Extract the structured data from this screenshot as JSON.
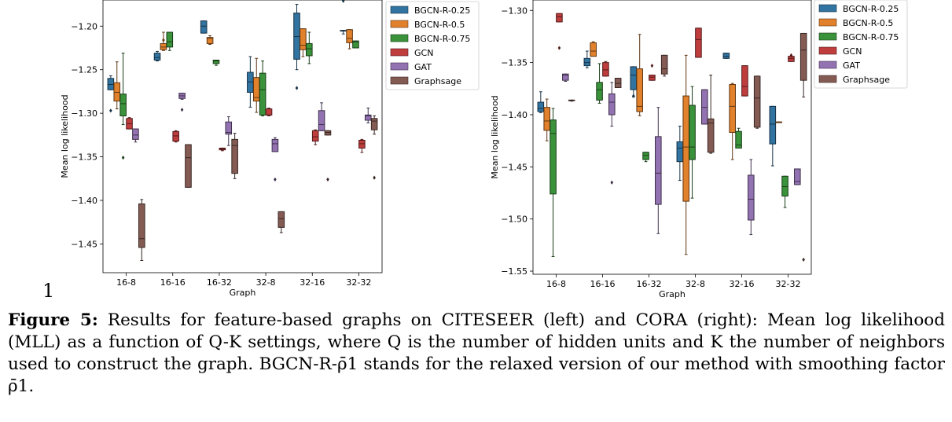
{
  "chart_data": [
    {
      "type": "box",
      "name": "CITESEER",
      "xlabel": "Graph",
      "ylabel": "Mean log likelihood",
      "categories": [
        "16-8",
        "16-16",
        "16-32",
        "32-8",
        "32-16",
        "32-32"
      ],
      "ylim": [
        -1.483,
        -1.17
      ],
      "yticks": [
        -1.2,
        -1.25,
        -1.3,
        -1.35,
        -1.4,
        -1.45
      ],
      "ytick_labels": [
        "−1.20",
        "−1.25",
        "−1.30",
        "−1.35",
        "−1.40",
        "−1.45"
      ],
      "grid": false,
      "legend_position": "outside-right",
      "series": [
        {
          "name": "BGCN-R-0.25",
          "color": "#3274a1",
          "boxes": [
            {
              "wlo": -1.273,
              "q1": -1.273,
              "med": -1.267,
              "q3": -1.26,
              "whi": -1.257,
              "fliers": [
                -1.297
              ]
            },
            {
              "wlo": -1.24,
              "q1": -1.239,
              "med": -1.236,
              "q3": -1.231,
              "whi": -1.229,
              "fliers": []
            },
            {
              "wlo": -1.208,
              "q1": -1.208,
              "med": -1.2,
              "q3": -1.194,
              "whi": -1.194,
              "fliers": [
                -1.163
              ]
            },
            {
              "wlo": -1.293,
              "q1": -1.276,
              "med": -1.264,
              "q3": -1.253,
              "whi": -1.235,
              "fliers": []
            },
            {
              "wlo": -1.25,
              "q1": -1.238,
              "med": -1.212,
              "q3": -1.185,
              "whi": -1.175,
              "fliers": [
                -1.271
              ]
            },
            {
              "wlo": -1.209,
              "q1": -1.205,
              "med": -1.205,
              "q3": -1.205,
              "whi": -1.205,
              "fliers": [
                -1.171
              ]
            }
          ]
        },
        {
          "name": "BGCN-R-0.5",
          "color": "#e1812c",
          "boxes": [
            {
              "wlo": -1.295,
              "q1": -1.286,
              "med": -1.276,
              "q3": -1.265,
              "whi": -1.241,
              "fliers": []
            },
            {
              "wlo": -1.228,
              "q1": -1.227,
              "med": -1.224,
              "q3": -1.22,
              "whi": -1.207,
              "fliers": [
                -1.216
              ]
            },
            {
              "wlo": -1.221,
              "q1": -1.22,
              "med": -1.214,
              "q3": -1.213,
              "whi": -1.211,
              "fliers": []
            },
            {
              "wlo": -1.299,
              "q1": -1.286,
              "med": -1.282,
              "q3": -1.259,
              "whi": -1.237,
              "fliers": []
            },
            {
              "wlo": -1.235,
              "q1": -1.227,
              "med": -1.222,
              "q3": -1.203,
              "whi": -1.203,
              "fliers": []
            },
            {
              "wlo": -1.226,
              "q1": -1.219,
              "med": -1.214,
              "q3": -1.204,
              "whi": -1.204,
              "fliers": []
            }
          ]
        },
        {
          "name": "BGCN-R-0.75",
          "color": "#3a923a",
          "boxes": [
            {
              "wlo": -1.313,
              "q1": -1.303,
              "med": -1.289,
              "q3": -1.278,
              "whi": -1.231,
              "fliers": [
                -1.351
              ]
            },
            {
              "wlo": -1.228,
              "q1": -1.224,
              "med": -1.218,
              "q3": -1.207,
              "whi": -1.207,
              "fliers": []
            },
            {
              "wlo": -1.245,
              "q1": -1.243,
              "med": -1.24,
              "q3": -1.239,
              "whi": -1.239,
              "fliers": []
            },
            {
              "wlo": -1.303,
              "q1": -1.302,
              "med": -1.273,
              "q3": -1.254,
              "whi": -1.24,
              "fliers": []
            },
            {
              "wlo": -1.243,
              "q1": -1.234,
              "med": -1.226,
              "q3": -1.22,
              "whi": -1.207,
              "fliers": []
            },
            {
              "wlo": -1.225,
              "q1": -1.225,
              "med": -1.218,
              "q3": -1.217,
              "whi": -1.217,
              "fliers": []
            }
          ]
        },
        {
          "name": "GCN",
          "color": "#c03d3e",
          "boxes": [
            {
              "wlo": -1.318,
              "q1": -1.318,
              "med": -1.312,
              "q3": -1.306,
              "whi": -1.305,
              "fliers": []
            },
            {
              "wlo": -1.333,
              "q1": -1.332,
              "med": -1.326,
              "q3": -1.321,
              "whi": -1.32,
              "fliers": []
            },
            {
              "wlo": -1.343,
              "q1": -1.342,
              "med": -1.341,
              "q3": -1.34,
              "whi": -1.34,
              "fliers": []
            },
            {
              "wlo": -1.303,
              "q1": -1.302,
              "med": -1.302,
              "q3": -1.295,
              "whi": -1.294,
              "fliers": []
            },
            {
              "wlo": -1.336,
              "q1": -1.332,
              "med": -1.327,
              "q3": -1.32,
              "whi": -1.319,
              "fliers": []
            },
            {
              "wlo": -1.345,
              "q1": -1.34,
              "med": -1.335,
              "q3": -1.331,
              "whi": -1.33,
              "fliers": []
            }
          ]
        },
        {
          "name": "GAT",
          "color": "#9372b2",
          "boxes": [
            {
              "wlo": -1.333,
              "q1": -1.33,
              "med": -1.325,
              "q3": -1.318,
              "whi": -1.318,
              "fliers": []
            },
            {
              "wlo": -1.284,
              "q1": -1.283,
              "med": -1.28,
              "q3": -1.277,
              "whi": -1.277,
              "fliers": [
                -1.296
              ]
            },
            {
              "wlo": -1.337,
              "q1": -1.324,
              "med": -1.322,
              "q3": -1.31,
              "whi": -1.304,
              "fliers": []
            },
            {
              "wlo": -1.344,
              "q1": -1.344,
              "med": -1.335,
              "q3": -1.33,
              "whi": -1.328,
              "fliers": [
                -1.376
              ]
            },
            {
              "wlo": -1.32,
              "q1": -1.32,
              "med": -1.313,
              "q3": -1.297,
              "whi": -1.288,
              "fliers": []
            },
            {
              "wlo": -1.311,
              "q1": -1.308,
              "med": -1.303,
              "q3": -1.302,
              "whi": -1.294,
              "fliers": []
            }
          ]
        },
        {
          "name": "Graphsage",
          "color": "#845b53",
          "boxes": [
            {
              "wlo": -1.469,
              "q1": -1.454,
              "med": -1.444,
              "q3": -1.404,
              "whi": -1.399,
              "fliers": []
            },
            {
              "wlo": -1.385,
              "q1": -1.385,
              "med": -1.351,
              "q3": -1.336,
              "whi": -1.336,
              "fliers": []
            },
            {
              "wlo": -1.375,
              "q1": -1.369,
              "med": -1.337,
              "q3": -1.33,
              "whi": -1.323,
              "fliers": []
            },
            {
              "wlo": -1.437,
              "q1": -1.431,
              "med": -1.421,
              "q3": -1.413,
              "whi": -1.413,
              "fliers": []
            },
            {
              "wlo": -1.325,
              "q1": -1.325,
              "med": -1.322,
              "q3": -1.32,
              "whi": -1.32,
              "fliers": [
                -1.376
              ]
            },
            {
              "wlo": -1.324,
              "q1": -1.319,
              "med": -1.309,
              "q3": -1.306,
              "whi": -1.303,
              "fliers": [
                -1.374
              ]
            }
          ]
        }
      ]
    },
    {
      "type": "box",
      "name": "CORA",
      "xlabel": "Graph",
      "ylabel": "Mean log likelihood",
      "categories": [
        "16-8",
        "16-16",
        "16-32",
        "32-8",
        "32-16",
        "32-32"
      ],
      "ylim": [
        -1.553,
        -1.29
      ],
      "yticks": [
        -1.3,
        -1.35,
        -1.4,
        -1.45,
        -1.5,
        -1.55
      ],
      "ytick_labels": [
        "−1.30",
        "−1.35",
        "−1.40",
        "−1.45",
        "−1.50",
        "−1.55"
      ],
      "grid": false,
      "legend_position": "outside-right",
      "series": [
        {
          "name": "BGCN-R-0.25",
          "color": "#3274a1",
          "boxes": [
            {
              "wlo": -1.398,
              "q1": -1.397,
              "med": -1.394,
              "q3": -1.388,
              "whi": -1.378,
              "fliers": []
            },
            {
              "wlo": -1.355,
              "q1": -1.353,
              "med": -1.35,
              "q3": -1.346,
              "whi": -1.339,
              "fliers": []
            },
            {
              "wlo": -1.383,
              "q1": -1.376,
              "med": -1.362,
              "q3": -1.354,
              "whi": -1.354,
              "fliers": [
                -1.382
              ]
            },
            {
              "wlo": -1.463,
              "q1": -1.445,
              "med": -1.432,
              "q3": -1.426,
              "whi": -1.411,
              "fliers": []
            },
            {
              "wlo": -1.346,
              "q1": -1.346,
              "med": -1.344,
              "q3": -1.341,
              "whi": -1.341,
              "fliers": []
            },
            {
              "wlo": -1.449,
              "q1": -1.428,
              "med": -1.409,
              "q3": -1.392,
              "whi": -1.392,
              "fliers": []
            }
          ]
        },
        {
          "name": "BGCN-R-0.5",
          "color": "#e1812c",
          "boxes": [
            {
              "wlo": -1.425,
              "q1": -1.415,
              "med": -1.406,
              "q3": -1.393,
              "whi": -1.385,
              "fliers": []
            },
            {
              "wlo": -1.343,
              "q1": -1.344,
              "med": -1.339,
              "q3": -1.331,
              "whi": -1.33,
              "fliers": []
            },
            {
              "wlo": -1.401,
              "q1": -1.397,
              "med": -1.392,
              "q3": -1.356,
              "whi": -1.323,
              "fliers": []
            },
            {
              "wlo": -1.534,
              "q1": -1.483,
              "med": -1.431,
              "q3": -1.382,
              "whi": -1.343,
              "fliers": []
            },
            {
              "wlo": -1.443,
              "q1": -1.417,
              "med": -1.392,
              "q3": -1.371,
              "whi": -1.37,
              "fliers": []
            },
            {
              "wlo": -1.407,
              "q1": -1.407,
              "med": -1.407,
              "q3": -1.407,
              "whi": -1.407,
              "fliers": []
            }
          ]
        },
        {
          "name": "BGCN-R-0.75",
          "color": "#3a923a",
          "boxes": [
            {
              "wlo": -1.536,
              "q1": -1.476,
              "med": -1.418,
              "q3": -1.405,
              "whi": -1.394,
              "fliers": []
            },
            {
              "wlo": -1.389,
              "q1": -1.386,
              "med": -1.376,
              "q3": -1.369,
              "whi": -1.351,
              "fliers": []
            },
            {
              "wlo": -1.445,
              "q1": -1.443,
              "med": -1.439,
              "q3": -1.436,
              "whi": -1.436,
              "fliers": []
            },
            {
              "wlo": -1.48,
              "q1": -1.443,
              "med": -1.431,
              "q3": -1.391,
              "whi": -1.373,
              "fliers": []
            },
            {
              "wlo": -1.431,
              "q1": -1.432,
              "med": -1.429,
              "q3": -1.416,
              "whi": -1.413,
              "fliers": []
            },
            {
              "wlo": -1.489,
              "q1": -1.478,
              "med": -1.469,
              "q3": -1.459,
              "whi": -1.459,
              "fliers": []
            }
          ]
        },
        {
          "name": "GCN",
          "color": "#c03d3e",
          "boxes": [
            {
              "wlo": -1.311,
              "q1": -1.311,
              "med": -1.306,
              "q3": -1.303,
              "whi": -1.303,
              "fliers": [
                -1.336
              ]
            },
            {
              "wlo": -1.363,
              "q1": -1.363,
              "med": -1.357,
              "q3": -1.35,
              "whi": -1.349,
              "fliers": []
            },
            {
              "wlo": -1.367,
              "q1": -1.367,
              "med": -1.364,
              "q3": -1.362,
              "whi": -1.362,
              "fliers": [
                -1.353
              ]
            },
            {
              "wlo": -1.345,
              "q1": -1.345,
              "med": -1.328,
              "q3": -1.317,
              "whi": -1.317,
              "fliers": []
            },
            {
              "wlo": -1.382,
              "q1": -1.382,
              "med": -1.373,
              "q3": -1.353,
              "whi": -1.353,
              "fliers": []
            },
            {
              "wlo": -1.349,
              "q1": -1.349,
              "med": -1.346,
              "q3": -1.344,
              "whi": -1.344,
              "fliers": [
                -1.343
              ]
            }
          ]
        },
        {
          "name": "GAT",
          "color": "#9372b2",
          "boxes": [
            {
              "wlo": -1.368,
              "q1": -1.367,
              "med": -1.362,
              "q3": -1.361,
              "whi": -1.361,
              "fliers": []
            },
            {
              "wlo": -1.411,
              "q1": -1.4,
              "med": -1.388,
              "q3": -1.38,
              "whi": -1.369,
              "fliers": [
                -1.465
              ]
            },
            {
              "wlo": -1.514,
              "q1": -1.486,
              "med": -1.456,
              "q3": -1.421,
              "whi": -1.393,
              "fliers": []
            },
            {
              "wlo": -1.409,
              "q1": -1.409,
              "med": -1.393,
              "q3": -1.376,
              "whi": -1.376,
              "fliers": []
            },
            {
              "wlo": -1.515,
              "q1": -1.501,
              "med": -1.481,
              "q3": -1.458,
              "whi": -1.443,
              "fliers": []
            },
            {
              "wlo": -1.467,
              "q1": -1.467,
              "med": -1.464,
              "q3": -1.452,
              "whi": -1.452,
              "fliers": []
            }
          ]
        },
        {
          "name": "Graphsage",
          "color": "#845b53",
          "boxes": [
            {
              "wlo": -1.387,
              "q1": -1.386,
              "med": -1.386,
              "q3": -1.386,
              "whi": -1.386,
              "fliers": []
            },
            {
              "wlo": -1.374,
              "q1": -1.374,
              "med": -1.37,
              "q3": -1.365,
              "whi": -1.365,
              "fliers": []
            },
            {
              "wlo": -1.363,
              "q1": -1.361,
              "med": -1.356,
              "q3": -1.343,
              "whi": -1.343,
              "fliers": []
            },
            {
              "wlo": -1.437,
              "q1": -1.436,
              "med": -1.408,
              "q3": -1.404,
              "whi": -1.362,
              "fliers": []
            },
            {
              "wlo": -1.413,
              "q1": -1.412,
              "med": -1.384,
              "q3": -1.363,
              "whi": -1.363,
              "fliers": []
            },
            {
              "wlo": -1.383,
              "q1": -1.367,
              "med": -1.338,
              "q3": -1.322,
              "whi": -1.322,
              "fliers": [
                -1.539
              ]
            }
          ]
        }
      ]
    }
  ],
  "page_number": "1",
  "caption": {
    "label": "Figure 5:",
    "text": "Results for feature-based graphs on CITESEER (left) and CORA (right): Mean log likelihood (MLL) as a function of Q-K settings, where Q is the number of hidden units and K the number of neighbors used to construct the graph. BGCN-R-ρ̄1 stands for the relaxed version of our method with smoothing factor ρ̄1."
  }
}
